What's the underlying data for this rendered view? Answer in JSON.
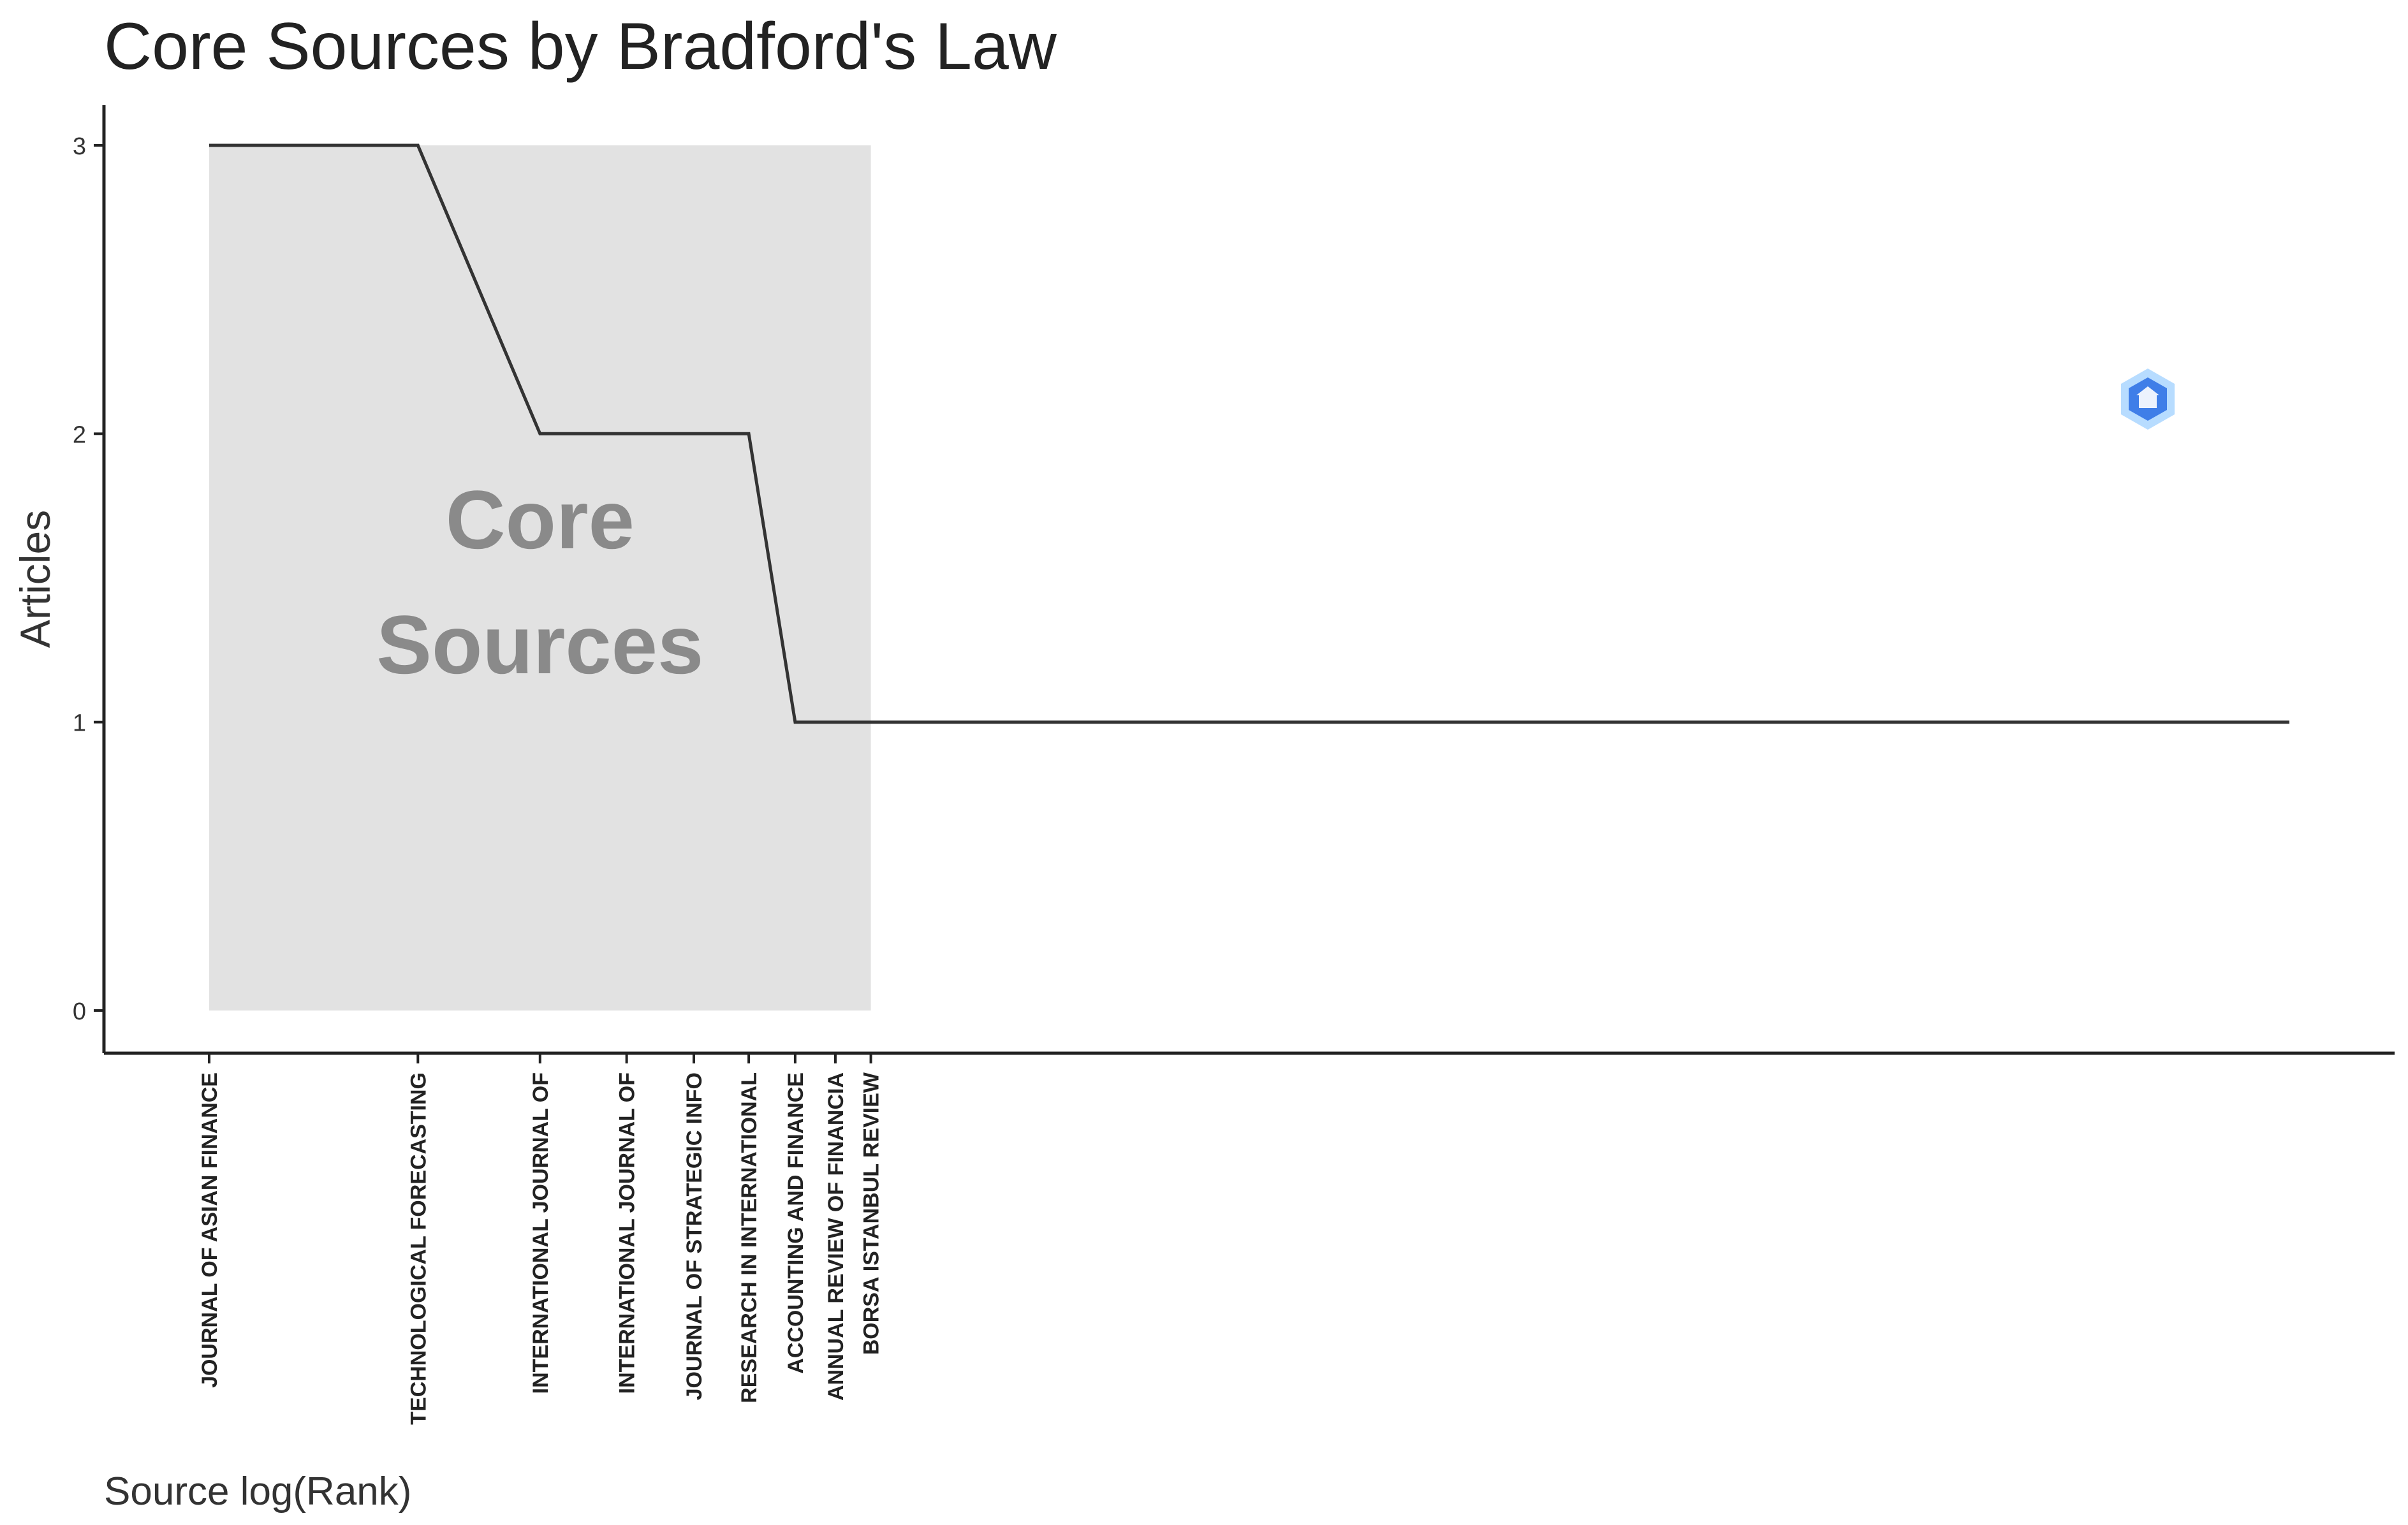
{
  "chart_data": {
    "type": "line",
    "title": "Core Sources by Bradford's Law",
    "xlabel": "Source log(Rank)",
    "ylabel": "Articles",
    "ylim": [
      0,
      3
    ],
    "yticks": [
      0,
      1,
      2,
      3
    ],
    "x_scale": "log",
    "grid": false,
    "legend": "none",
    "core_zone": {
      "label_lines": [
        "Core",
        "Sources"
      ],
      "from_rank": 1,
      "to_rank": 9,
      "max_articles": 3
    },
    "sources": [
      {
        "rank": 1,
        "label": "JOURNAL OF ASIAN FINANCE",
        "articles": 3
      },
      {
        "rank": 2,
        "label": "TECHNOLOGICAL FORECASTING",
        "articles": 3
      },
      {
        "rank": 3,
        "label": "INTERNATIONAL JOURNAL OF",
        "articles": 2
      },
      {
        "rank": 4,
        "label": "INTERNATIONAL JOURNAL OF",
        "articles": 2
      },
      {
        "rank": 5,
        "label": "JOURNAL OF STRATEGIC INFO",
        "articles": 2
      },
      {
        "rank": 6,
        "label": "RESEARCH IN INTERNATIONAL",
        "articles": 2
      },
      {
        "rank": 7,
        "label": "ACCOUNTING AND FINANCE",
        "articles": 1
      },
      {
        "rank": 8,
        "label": "ANNUAL REVIEW OF FINANCIA",
        "articles": 1
      },
      {
        "rank": 9,
        "label": "BORSA ISTANBUL REVIEW",
        "articles": 1
      }
    ],
    "line_end": {
      "rank": 1000,
      "articles": 1
    },
    "colors": {
      "line": "#333333",
      "core_zone": "#e2e2e2",
      "core_label": "#8a8a8a",
      "axis": "#222222"
    }
  }
}
